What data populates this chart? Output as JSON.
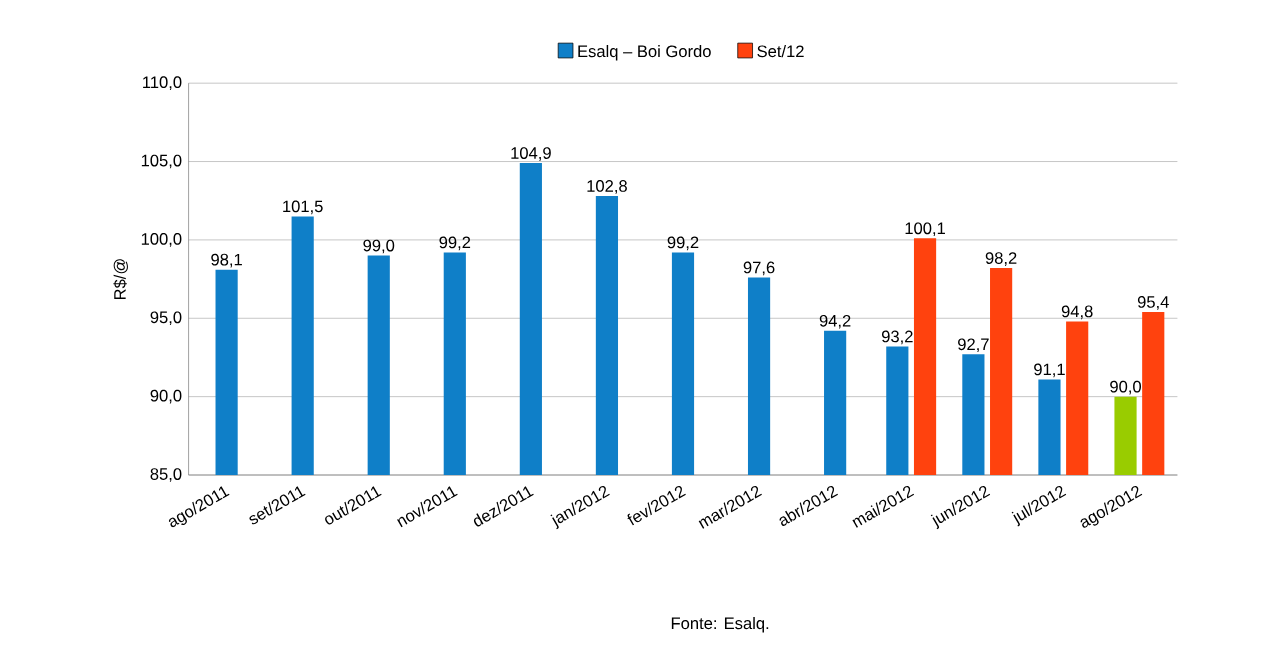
{
  "chart_data": {
    "type": "bar",
    "ylabel": "R$/@",
    "categories": [
      "ago/2011",
      "set/2011",
      "out/2011",
      "nov/2011",
      "dez/2011",
      "jan/2012",
      "fev/2012",
      "mar/2012",
      "abr/2012",
      "mai/2012",
      "jun/2012",
      "jul/2012",
      "ago/2012"
    ],
    "series": [
      {
        "name": "Esalq – Boi Gordo",
        "color": "#0f7fc8",
        "colors": [
          "#0f7fc8",
          "#0f7fc8",
          "#0f7fc8",
          "#0f7fc8",
          "#0f7fc8",
          "#0f7fc8",
          "#0f7fc8",
          "#0f7fc8",
          "#0f7fc8",
          "#0f7fc8",
          "#0f7fc8",
          "#0f7fc8",
          "#99cc00"
        ],
        "values": [
          98.1,
          101.5,
          99.0,
          99.2,
          104.9,
          102.8,
          99.2,
          97.6,
          94.2,
          93.2,
          92.7,
          91.1,
          90.0
        ],
        "value_labels": [
          "98,1",
          "101,5",
          "99,0",
          "99,2",
          "104,9",
          "102,8",
          "99,2",
          "97,6",
          "94,2",
          "93,2",
          "92,7",
          "91,1",
          "90,0"
        ]
      },
      {
        "name": "Set/12",
        "color": "#ff420e",
        "values": [
          null,
          null,
          null,
          null,
          null,
          null,
          null,
          null,
          null,
          100.1,
          98.2,
          94.8,
          95.4
        ],
        "value_labels": [
          null,
          null,
          null,
          null,
          null,
          null,
          null,
          null,
          null,
          "100,1",
          "98,2",
          "94,8",
          "95,4"
        ]
      }
    ],
    "ylim": [
      85,
      110
    ],
    "yticks": [
      {
        "value": 85,
        "label": "85,0"
      },
      {
        "value": 90,
        "label": "90,0"
      },
      {
        "value": 95,
        "label": "95,0"
      },
      {
        "value": 100,
        "label": "100,0"
      },
      {
        "value": 105,
        "label": "105,0"
      },
      {
        "value": 110,
        "label": "110,0"
      }
    ],
    "grid": "y",
    "legend": "top",
    "annotations": [
      "Fonte: Esalq."
    ]
  }
}
